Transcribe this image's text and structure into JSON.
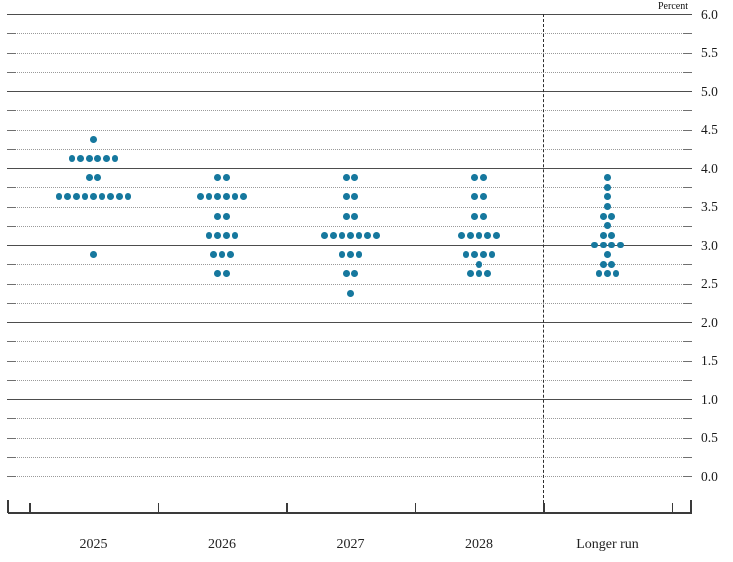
{
  "chart": {
    "unit_label": "Percent",
    "y_tick_labels": [
      "6.0",
      "5.5",
      "5.0",
      "4.5",
      "4.0",
      "3.5",
      "3.0",
      "2.5",
      "2.0",
      "1.5",
      "1.0",
      "0.5",
      "0.0"
    ],
    "category_labels": [
      "2025",
      "2026",
      "2027",
      "2028",
      "Longer run"
    ]
  },
  "chart_data": {
    "type": "scatter",
    "subtype": "fomc-dot-plot",
    "ylabel": "Percent",
    "ylim": [
      0.0,
      6.0
    ],
    "y_label_step": 0.5,
    "y_grid_step": 0.25,
    "grid": true,
    "legend_position": "none",
    "categories": [
      "2025",
      "2026",
      "2027",
      "2028",
      "Longer run"
    ],
    "series": [
      {
        "name": "2025",
        "dots": [
          {
            "rate": 4.375,
            "count": 1
          },
          {
            "rate": 4.125,
            "count": 6
          },
          {
            "rate": 3.875,
            "count": 2
          },
          {
            "rate": 3.625,
            "count": 9
          },
          {
            "rate": 2.875,
            "count": 1
          }
        ]
      },
      {
        "name": "2026",
        "dots": [
          {
            "rate": 3.875,
            "count": 2
          },
          {
            "rate": 3.625,
            "count": 6
          },
          {
            "rate": 3.375,
            "count": 2
          },
          {
            "rate": 3.125,
            "count": 4
          },
          {
            "rate": 2.875,
            "count": 3
          },
          {
            "rate": 2.625,
            "count": 2
          }
        ]
      },
      {
        "name": "2027",
        "dots": [
          {
            "rate": 3.875,
            "count": 2
          },
          {
            "rate": 3.625,
            "count": 2
          },
          {
            "rate": 3.375,
            "count": 2
          },
          {
            "rate": 3.125,
            "count": 7
          },
          {
            "rate": 2.875,
            "count": 3
          },
          {
            "rate": 2.625,
            "count": 2
          },
          {
            "rate": 2.375,
            "count": 1
          }
        ]
      },
      {
        "name": "2028",
        "dots": [
          {
            "rate": 3.875,
            "count": 2
          },
          {
            "rate": 3.625,
            "count": 2
          },
          {
            "rate": 3.375,
            "count": 2
          },
          {
            "rate": 3.125,
            "count": 5
          },
          {
            "rate": 2.875,
            "count": 4
          },
          {
            "rate": 2.75,
            "count": 1
          },
          {
            "rate": 2.625,
            "count": 3
          }
        ]
      },
      {
        "name": "Longer run",
        "dots": [
          {
            "rate": 3.875,
            "count": 1
          },
          {
            "rate": 3.75,
            "count": 1
          },
          {
            "rate": 3.625,
            "count": 1
          },
          {
            "rate": 3.5,
            "count": 1
          },
          {
            "rate": 3.375,
            "count": 2
          },
          {
            "rate": 3.25,
            "count": 1
          },
          {
            "rate": 3.125,
            "count": 2
          },
          {
            "rate": 3.0,
            "count": 4
          },
          {
            "rate": 2.875,
            "count": 1
          },
          {
            "rate": 2.75,
            "count": 2
          },
          {
            "rate": 2.625,
            "count": 3
          }
        ]
      }
    ],
    "colors": {
      "dot": "#16789e",
      "grid_dotted": "#9a9a9a",
      "grid_solid": "#4d4d4d",
      "axis": "#3a3a3a",
      "text": "#1a1a1a"
    }
  }
}
